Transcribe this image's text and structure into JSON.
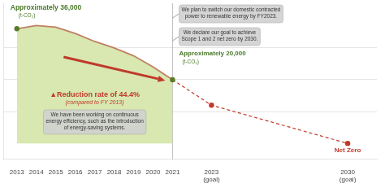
{
  "chart_data": {
    "type": "line",
    "series": [
      {
        "type": "area",
        "x": [
          2013,
          2014,
          2015,
          2016,
          2017,
          2018,
          2019,
          2020,
          2021
        ],
        "values": [
          36000,
          37000,
          36500,
          34500,
          32000,
          30000,
          27500,
          24000,
          20000
        ],
        "color": "#d8e8b0"
      },
      {
        "type": "line",
        "x": [
          2013,
          2014,
          2015,
          2016,
          2017,
          2018,
          2019,
          2020,
          2021
        ],
        "values": [
          36000,
          37000,
          36500,
          34500,
          32000,
          30000,
          27500,
          24000,
          20000
        ],
        "color": "#c08060"
      },
      {
        "type": "line",
        "x": [
          2021,
          2023,
          2030
        ],
        "values": [
          20000,
          12000,
          0
        ],
        "color": "#c0392b",
        "line_style": "dashed"
      },
      {
        "type": "scatter",
        "x": [
          2013,
          2021
        ],
        "values": [
          36000,
          20000
        ],
        "color": "#5a7a2a",
        "marker": "circle"
      },
      {
        "type": "scatter",
        "x": [
          2023,
          2030
        ],
        "values": [
          12000,
          0
        ],
        "color": "#c0392b",
        "marker": "circle"
      }
    ],
    "xlim": [
      2012.3,
      2031.5
    ],
    "xticks": [
      2013,
      2014,
      2015,
      2016,
      2017,
      2018,
      2019,
      2020,
      2021,
      {
        "value": 2023,
        "label": "2023\n(goal)"
      },
      {
        "value": 2030,
        "label": "2030\n(goal)"
      }
    ],
    "ylim": [
      -5000,
      44000
    ],
    "yticks": [
      10000,
      20000,
      30000
    ],
    "grid": "y",
    "tick_labels": "x",
    "vlines": [
      2021
    ],
    "arrow": {
      "color": "#c0392b"
    },
    "annotations": [
      {
        "text": "Approximately 36,000",
        "color": "#4a7a2a"
      },
      {
        "text": "(t-CO₂)",
        "color": "#4a7a2a"
      },
      {
        "text": "Approximately 20,000",
        "color": "#4a7a2a"
      },
      {
        "text": "(t-CO₂)",
        "color": "#4a7a2a"
      },
      {
        "text": "Net Zero",
        "color": "#c0392b"
      },
      {
        "text": "▲Reduction rate of 44.4%",
        "color": "#c0392b"
      },
      {
        "text": "(compared to FY 2013)",
        "color": "#c0392b"
      },
      {
        "text": "We have been working on continuous\nenergy efficiency, such as the introduction\nof energy-saving systems.",
        "color": "#333333",
        "background": "#d0d0d0"
      },
      {
        "text": "We plan to switch our domestic contracted\npower to renewable energy by FY2023.",
        "color": "#333333",
        "background": "#d0d0d0"
      },
      {
        "text": "We declare our goal to achieve\nScope 1 and 2 net zero by 2030.",
        "color": "#333333",
        "background": "#d0d0d0"
      }
    ]
  }
}
